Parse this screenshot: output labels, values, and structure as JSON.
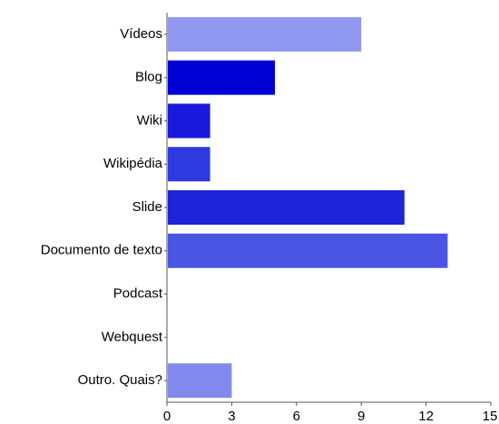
{
  "chart_data": {
    "type": "bar",
    "orientation": "horizontal",
    "categories": [
      "Vídeos",
      "Blog",
      "Wiki",
      "Wikipédia",
      "Slide",
      "Documento de texto",
      "Podcast",
      "Webquest",
      "Outro. Quais?"
    ],
    "values": [
      9,
      5,
      2,
      2,
      11,
      13,
      0,
      0,
      3
    ],
    "colors": [
      "#9097ef",
      "#0000d4",
      "#1a1add",
      "#2e3adf",
      "#1e24d8",
      "#4b55e4",
      "#cccccc",
      "#cccccc",
      "#8189ec"
    ],
    "xlim": [
      0,
      15
    ],
    "xticks": [
      0,
      3,
      6,
      9,
      12,
      15
    ],
    "grid": false,
    "title": "",
    "xlabel": "",
    "ylabel": ""
  }
}
